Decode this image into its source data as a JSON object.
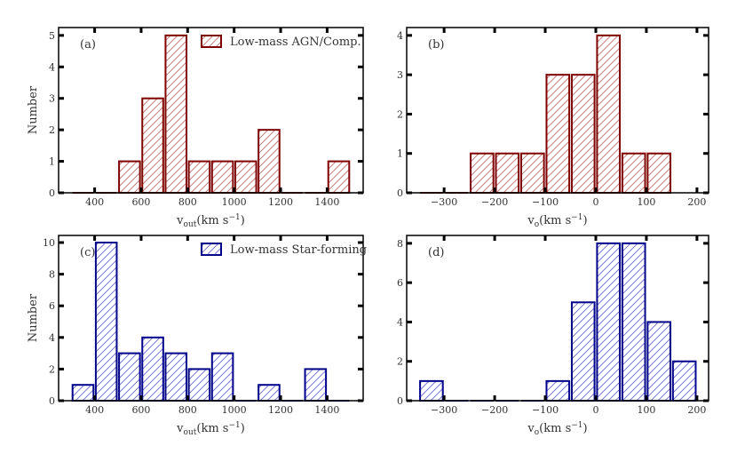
{
  "chart_data": [
    {
      "type": "bar",
      "panel_label": "(a)",
      "legend": "Low-mass AGN/Comp.",
      "legend_placement": "top-right",
      "color": "#7f0000",
      "hatch_color": "#c07070",
      "xlabel": "v_out(km s^-1)",
      "xlabel_main": "v",
      "xlabel_sub": "out",
      "xlabel_unit": "(km s",
      "xlabel_exp": "−1",
      "ylabel": "Number",
      "xlim": [
        245,
        1555
      ],
      "ylim": [
        0,
        5.25
      ],
      "xticks": [
        400,
        600,
        800,
        1000,
        1200,
        1400
      ],
      "yticks": [
        0,
        1,
        2,
        3,
        4,
        5
      ],
      "bin_edges": [
        300,
        400,
        500,
        600,
        700,
        800,
        900,
        1000,
        1100,
        1200,
        1300,
        1400,
        1500
      ],
      "values": [
        0,
        0,
        1,
        3,
        5,
        1,
        1,
        1,
        2,
        0,
        0,
        1
      ]
    },
    {
      "type": "bar",
      "panel_label": "(b)",
      "color": "#7f0000",
      "hatch_color": "#c07070",
      "xlabel": "v_o(km s^-1)",
      "xlabel_main": "v",
      "xlabel_sub": "o",
      "xlabel_unit": "(km s",
      "xlabel_exp": "−1",
      "ylabel": "",
      "xlim": [
        -374,
        223
      ],
      "ylim": [
        0,
        4.2
      ],
      "xticks": [
        -300,
        -200,
        -100,
        0,
        100,
        200
      ],
      "yticks": [
        0,
        1,
        2,
        3,
        4
      ],
      "bin_edges": [
        -350,
        -300,
        -250,
        -200,
        -150,
        -100,
        -50,
        0,
        50,
        100,
        150
      ],
      "values": [
        0,
        0,
        1,
        1,
        1,
        3,
        3,
        4,
        1,
        1
      ]
    },
    {
      "type": "bar",
      "panel_label": "(c)",
      "legend": "Low-mass Star-forming",
      "legend_placement": "top-right",
      "color": "#00008b",
      "hatch_color": "#6a6acf",
      "xlabel": "v_out(km s^-1)",
      "xlabel_main": "v",
      "xlabel_sub": "out",
      "xlabel_unit": "(km s",
      "xlabel_exp": "−1",
      "ylabel": "Number",
      "xlim": [
        245,
        1555
      ],
      "ylim": [
        0,
        10.45
      ],
      "xticks": [
        400,
        600,
        800,
        1000,
        1200,
        1400
      ],
      "yticks": [
        0,
        2,
        4,
        6,
        8,
        10
      ],
      "bin_edges": [
        300,
        400,
        500,
        600,
        700,
        800,
        900,
        1000,
        1100,
        1200,
        1300,
        1400,
        1500
      ],
      "values": [
        1,
        10,
        3,
        4,
        3,
        2,
        3,
        0,
        1,
        0,
        2,
        0
      ]
    },
    {
      "type": "bar",
      "panel_label": "(d)",
      "color": "#00008b",
      "hatch_color": "#6a6acf",
      "xlabel": "v_o(km s^-1)",
      "xlabel_main": "v",
      "xlabel_sub": "o",
      "xlabel_unit": "(km s",
      "xlabel_exp": "−1",
      "ylabel": "",
      "xlim": [
        -374,
        223
      ],
      "ylim": [
        0,
        8.4
      ],
      "xticks": [
        -300,
        -200,
        -100,
        0,
        100,
        200
      ],
      "yticks": [
        0,
        2,
        4,
        6,
        8
      ],
      "bin_edges": [
        -350,
        -300,
        -250,
        -200,
        -150,
        -100,
        -50,
        0,
        50,
        100,
        150,
        200
      ],
      "values": [
        1,
        0,
        0,
        0,
        0,
        1,
        5,
        8,
        8,
        4,
        2
      ]
    }
  ]
}
